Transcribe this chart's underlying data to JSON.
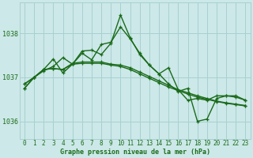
{
  "background_color": "#cce8e8",
  "grid_color": "#a8d0d0",
  "line_color": "#1a6b1a",
  "marker_color": "#1a6b1a",
  "xlabel": "Graphe pression niveau de la mer (hPa)",
  "ylim": [
    1035.6,
    1038.7
  ],
  "yticks": [
    1036,
    1037,
    1038
  ],
  "xlim": [
    -0.5,
    23.5
  ],
  "xticks": [
    0,
    1,
    2,
    3,
    4,
    5,
    6,
    7,
    8,
    9,
    10,
    11,
    12,
    13,
    14,
    15,
    16,
    17,
    18,
    19,
    20,
    21,
    22,
    23
  ],
  "series": [
    [
      1036.85,
      1037.0,
      1037.18,
      1037.42,
      1037.1,
      1037.3,
      1037.6,
      1037.62,
      1037.52,
      1037.78,
      1038.42,
      1037.9,
      1037.52,
      1037.28,
      1037.08,
      1037.22,
      1036.72,
      1036.48,
      1036.52,
      1036.48,
      1036.58,
      1036.58,
      1036.55,
      1036.48
    ],
    [
      1036.85,
      1037.0,
      1037.15,
      1037.25,
      1037.45,
      1037.3,
      1037.55,
      1037.4,
      1037.75,
      1037.8,
      1038.15,
      1037.88,
      1037.55,
      1037.28,
      1037.08,
      1036.85,
      1036.68,
      1036.75,
      1036.0,
      1036.05,
      1036.52,
      1036.58,
      1036.58,
      1036.48
    ],
    [
      1036.75,
      1037.0,
      1037.18,
      1037.2,
      1037.18,
      1037.32,
      1037.35,
      1037.35,
      1037.35,
      1037.3,
      1037.28,
      1037.22,
      1037.12,
      1037.02,
      1036.92,
      1036.82,
      1036.72,
      1036.65,
      1036.58,
      1036.52,
      1036.46,
      1036.42,
      1036.39,
      1036.36
    ],
    [
      1036.75,
      1037.0,
      1037.18,
      1037.2,
      1037.18,
      1037.3,
      1037.32,
      1037.32,
      1037.32,
      1037.28,
      1037.25,
      1037.18,
      1037.08,
      1036.98,
      1036.88,
      1036.78,
      1036.7,
      1036.62,
      1036.55,
      1036.5,
      1036.45,
      1036.41,
      1036.38,
      1036.35
    ]
  ],
  "linewidths": [
    1.0,
    1.0,
    1.0,
    1.0
  ],
  "marker_size": 3.0,
  "tick_fontsize": 5.5,
  "xlabel_fontsize": 6.0
}
